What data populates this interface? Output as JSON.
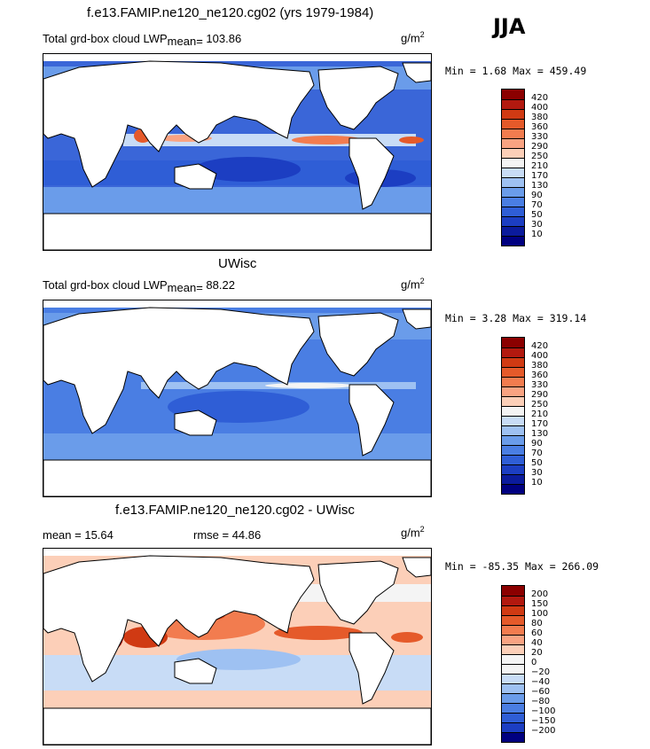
{
  "season": "JJA",
  "units_label": "g/m",
  "units_exponent": "2",
  "panels": [
    {
      "title": "f.e13.FAMIP.ne120_ne120.cg02 (yrs 1979-1984)",
      "variable": "Total grd-box cloud LWP",
      "mean_label": "mean=",
      "mean_value": "103.86",
      "min_max": "Min =   1.68 Max = 459.49",
      "colorbar_levels": [
        "420",
        "400",
        "380",
        "360",
        "330",
        "290",
        "250",
        "210",
        "170",
        "130",
        "90",
        "70",
        "50",
        "30",
        "10"
      ]
    },
    {
      "title": "UWisc",
      "variable": "Total grd-box cloud LWP",
      "mean_label": "mean=",
      "mean_value": "88.22",
      "min_max": "Min =   3.28 Max = 319.14",
      "colorbar_levels": [
        "420",
        "400",
        "380",
        "360",
        "330",
        "290",
        "250",
        "210",
        "170",
        "130",
        "90",
        "70",
        "50",
        "30",
        "10"
      ]
    },
    {
      "title": "f.e13.FAMIP.ne120_ne120.cg02 - UWisc",
      "mean_text": "mean =   15.64",
      "rmse_text": "rmse =   44.86",
      "min_max": "Min = -85.35 Max = 266.09",
      "colorbar_levels": [
        "200",
        "150",
        "100",
        "80",
        "60",
        "40",
        "20",
        "0",
        "−20",
        "−40",
        "−60",
        "−80",
        "−100",
        "−150",
        "−200"
      ]
    }
  ],
  "colors": {
    "abs_palette": [
      "#8b0000",
      "#b2190f",
      "#d03a13",
      "#e55a2a",
      "#f27c4f",
      "#f9a382",
      "#fccfb8",
      "#f4f4f4",
      "#c8dcf6",
      "#9ec1f2",
      "#6a9cea",
      "#4a7ee3",
      "#2f5ed6",
      "#1c3ec2",
      "#0b1b9c",
      "#000080"
    ],
    "diff_palette": [
      "#8b0000",
      "#b2190f",
      "#d03a13",
      "#e55a2a",
      "#f27c4f",
      "#f9a382",
      "#fccfb8",
      "#f4f4f4",
      "#f4f4f4",
      "#c8dcf6",
      "#9ec1f2",
      "#6a9cea",
      "#4a7ee3",
      "#2f5ed6",
      "#1c3ec2",
      "#000080"
    ]
  }
}
